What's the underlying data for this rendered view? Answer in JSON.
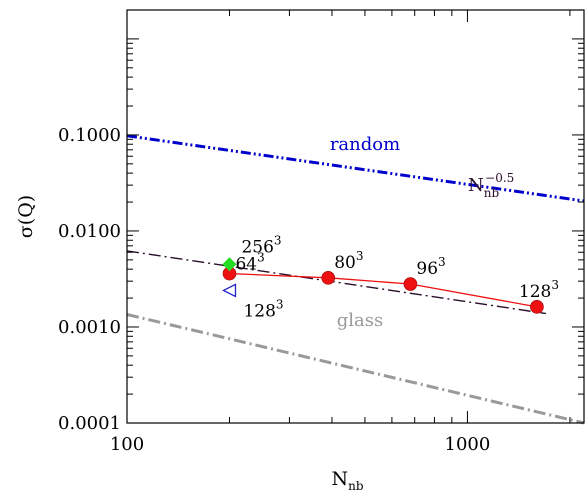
{
  "chart_data": {
    "type": "scatter",
    "x_scale": "log",
    "y_scale": "log",
    "xlim": [
      100,
      2200
    ],
    "ylim": [
      0.0001,
      2
    ],
    "xlabel": {
      "base": "N",
      "sub": "nb"
    },
    "ylabel": "σ(Q)",
    "x_ticks": [
      {
        "value": 100,
        "label": "100"
      },
      {
        "value": 1000,
        "label": "1000"
      }
    ],
    "y_ticks": [
      {
        "value": 0.1,
        "label": "0.1000"
      },
      {
        "value": 0.01,
        "label": "0.0100"
      },
      {
        "value": 0.001,
        "label": "0.0010"
      },
      {
        "value": 0.0001,
        "label": "0.0001"
      }
    ],
    "reference_lines": [
      {
        "label": "random",
        "color": "#0000cc",
        "style": "dash-dot-dot",
        "points": [
          [
            100,
            0.098
          ],
          [
            2200,
            0.0205
          ]
        ]
      },
      {
        "label": "glass",
        "color": "#999999",
        "style": "dash-dot",
        "points": [
          [
            100,
            0.00135
          ],
          [
            2200,
            0.0001
          ]
        ]
      },
      {
        "label_base": "N",
        "label_sub": "nb",
        "label_sup": "−0.5",
        "color": "#2a0f2a",
        "style": "dash-dot",
        "points": [
          [
            100,
            0.0062
          ],
          [
            1700,
            0.00138
          ]
        ]
      }
    ],
    "series": [
      {
        "marker": "circle",
        "color": "#ee1111",
        "points": [
          {
            "x": 200,
            "y": 0.0036,
            "label_base": "64",
            "label_sup": "3"
          },
          {
            "x": 390,
            "y": 0.00325,
            "label_base": "80",
            "label_sup": "3"
          },
          {
            "x": 680,
            "y": 0.0028,
            "label_base": "96",
            "label_sup": "3"
          },
          {
            "x": 1600,
            "y": 0.00162,
            "label_base": "128",
            "label_sup": "3"
          }
        ]
      },
      {
        "marker": "diamond",
        "color": "#22dd22",
        "points": [
          {
            "x": 200,
            "y": 0.0045,
            "label_base": "256",
            "label_sup": "3"
          }
        ]
      },
      {
        "marker": "triangle-left",
        "color": "#2222cc",
        "points": [
          {
            "x": 200,
            "y": 0.0024,
            "label_base": "128",
            "label_sup": "3"
          }
        ]
      }
    ]
  }
}
